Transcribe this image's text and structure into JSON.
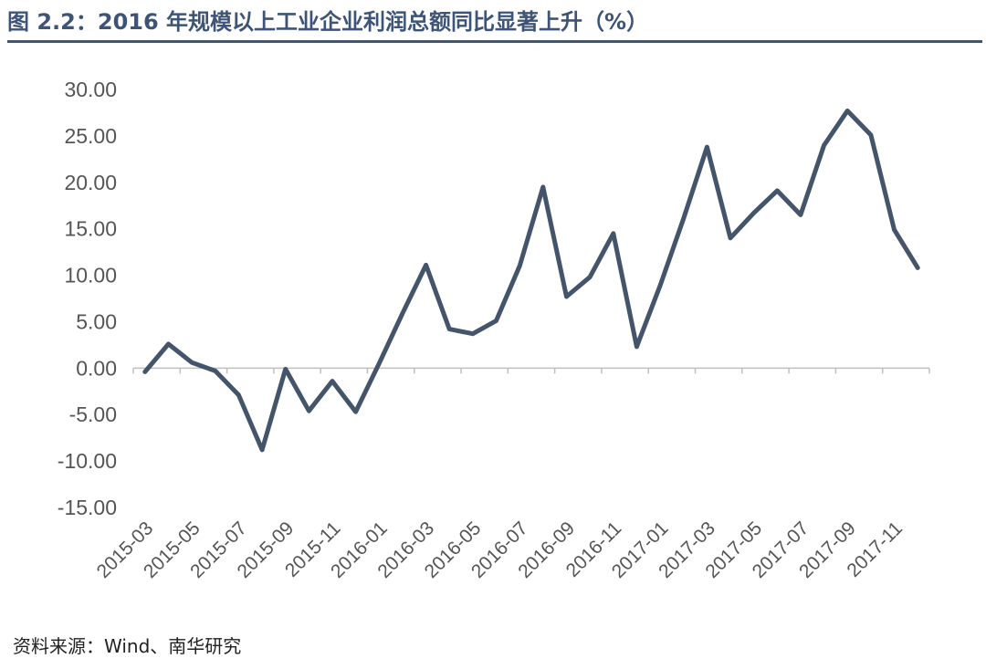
{
  "title": "图 2.2：2016 年规模以上工业企业利润总额同比显著上升（%）",
  "source": "资料来源：Wind、南华研究",
  "colors": {
    "title": "#3d5478",
    "rule": "#44546a",
    "line": "#44546a",
    "axis": "#bfbfbf"
  },
  "chart_data": {
    "type": "line",
    "title": "",
    "xlabel": "",
    "ylabel": "",
    "ylim": [
      -15,
      30
    ],
    "yticks": [
      "30.00",
      "25.00",
      "20.00",
      "15.00",
      "10.00",
      "5.00",
      "0.00",
      "-5.00",
      "-10.00",
      "-15.00"
    ],
    "ytick_values": [
      30,
      25,
      20,
      15,
      10,
      5,
      0,
      -5,
      -10,
      -15
    ],
    "x": [
      "2015-03",
      "2015-04",
      "2015-05",
      "2015-06",
      "2015-07",
      "2015-08",
      "2015-09",
      "2015-10",
      "2015-11",
      "2015-12",
      "2016-01",
      "2016-02",
      "2016-03",
      "2016-04",
      "2016-05",
      "2016-06",
      "2016-07",
      "2016-08",
      "2016-09",
      "2016-10",
      "2016-11",
      "2016-12",
      "2017-01",
      "2017-02",
      "2017-03",
      "2017-04",
      "2017-05",
      "2017-06",
      "2017-07",
      "2017-08",
      "2017-09",
      "2017-10",
      "2017-11",
      "2017-12"
    ],
    "xticks": [
      "2015-03",
      "2015-05",
      "2015-07",
      "2015-09",
      "2015-11",
      "2016-01",
      "2016-03",
      "2016-05",
      "2016-07",
      "2016-09",
      "2016-11",
      "2017-01",
      "2017-03",
      "2017-05",
      "2017-07",
      "2017-09",
      "2017-11"
    ],
    "grid": false,
    "legend": "none",
    "series": [
      {
        "values": [
          -0.4,
          2.6,
          0.6,
          -0.3,
          -2.9,
          -8.8,
          -0.1,
          -4.6,
          -1.4,
          -4.7,
          0.5,
          5.9,
          11.1,
          4.2,
          3.7,
          5.1,
          11.0,
          19.5,
          7.7,
          9.8,
          14.5,
          2.3,
          8.9,
          16.1,
          23.8,
          14.0,
          16.7,
          19.1,
          16.5,
          24.0,
          27.7,
          25.1,
          14.9,
          10.8
        ]
      }
    ]
  }
}
